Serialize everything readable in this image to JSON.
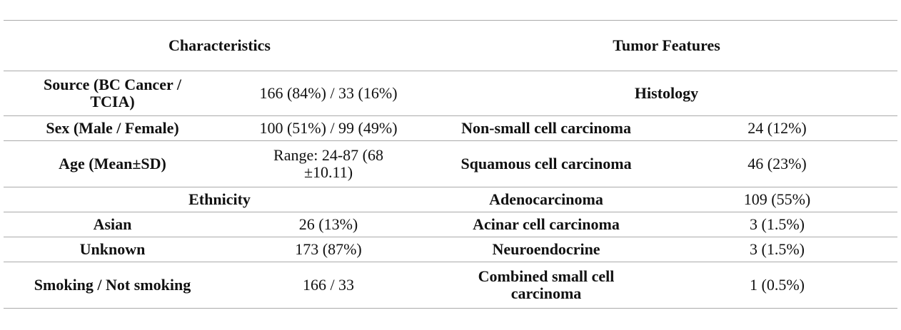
{
  "table": {
    "header": [
      "Characteristics",
      "Tumor Features"
    ],
    "rows": [
      [
        "Source (BC Cancer / TCIA)",
        "166 (84%) / 33 (16%)",
        "Histology"
      ],
      [
        "Sex (Male / Female)",
        "100 (51%) / 99 (49%)",
        "Non-small cell carcinoma",
        "24 (12%)"
      ],
      [
        "Age (Mean±SD)",
        "Range: 24-87 (68 ±10.11)",
        "Squamous cell carcinoma",
        "46 (23%)"
      ],
      [
        "Ethnicity",
        "Adenocarcinoma",
        "109 (55%)"
      ],
      [
        "Asian",
        "26 (13%)",
        "Acinar cell carcinoma",
        "3 (1.5%)"
      ],
      [
        "Unknown",
        "173 (87%)",
        "Neuroendocrine",
        "3 (1.5%)"
      ],
      [
        "Smoking / Not smoking",
        "166 / 33",
        "Combined small cell carcinoma",
        "1 (0.5%)"
      ]
    ]
  }
}
